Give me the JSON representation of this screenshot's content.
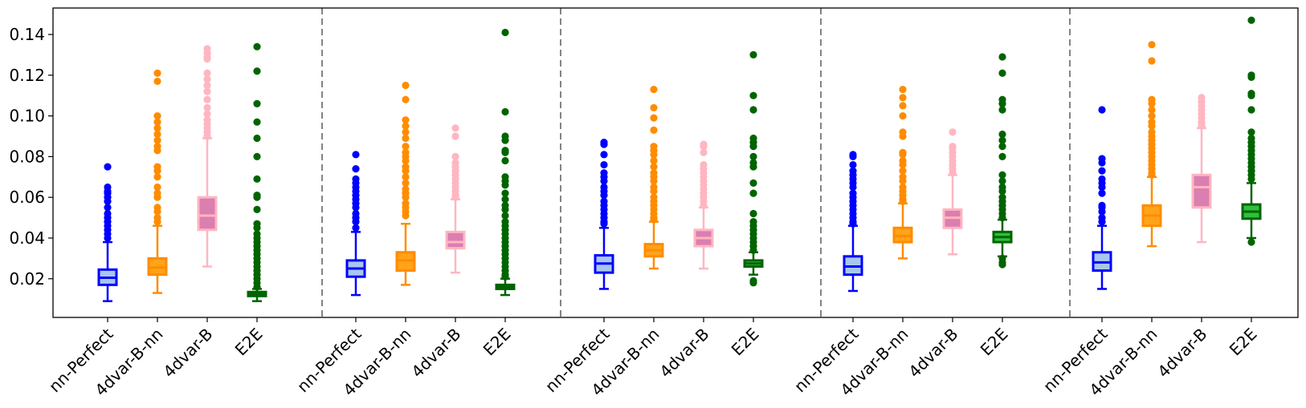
{
  "chart_data": {
    "type": "box",
    "title": "",
    "xlabel": "",
    "ylabel": "",
    "ylim": [
      0.001,
      0.153
    ],
    "yticks": [
      0.02,
      0.04,
      0.06,
      0.08,
      0.1,
      0.12,
      0.14
    ],
    "ytick_labels": [
      "0.02",
      "0.04",
      "0.06",
      "0.08",
      "0.10",
      "0.12",
      "0.14"
    ],
    "grid": false,
    "group_separators": "dashed gray vertical lines between groups",
    "methods": [
      {
        "name": "nn-Perfect",
        "color": "#0000ff",
        "fill": "#a9c6ef"
      },
      {
        "name": "4dvar-B-nn",
        "color": "#ff8c00",
        "fill": "#ffa31a"
      },
      {
        "name": "4dvar-B",
        "color": "#ffb6c1",
        "fill": "#db7eb0"
      },
      {
        "name": "E2E",
        "color": "#006400",
        "fill": "#2fbf3c"
      }
    ],
    "groups": [
      {
        "boxes": [
          {
            "method": "nn-Perfect",
            "whislo": 0.009,
            "q1": 0.017,
            "med": 0.0205,
            "q3": 0.0245,
            "whishi": 0.038,
            "fliers": [
              0.075,
              0.065,
              0.063,
              0.062,
              0.06,
              0.058,
              0.055,
              0.052,
              0.05,
              0.048,
              0.046,
              0.044,
              0.042,
              0.04
            ]
          },
          {
            "method": "4dvar-B-nn",
            "whislo": 0.013,
            "q1": 0.022,
            "med": 0.0255,
            "q3": 0.03,
            "whishi": 0.046,
            "fliers": [
              0.121,
              0.117,
              0.1,
              0.097,
              0.094,
              0.091,
              0.088,
              0.085,
              0.083,
              0.075,
              0.073,
              0.07,
              0.065,
              0.062,
              0.06,
              0.055,
              0.053,
              0.05,
              0.048
            ]
          },
          {
            "method": "4dvar-B",
            "whislo": 0.026,
            "q1": 0.044,
            "med": 0.051,
            "q3": 0.06,
            "whishi": 0.089,
            "fliers": [
              0.133,
              0.131,
              0.129,
              0.128,
              0.121,
              0.118,
              0.115,
              0.112,
              0.108,
              0.104,
              0.101,
              0.098,
              0.096,
              0.094,
              0.092,
              0.09
            ]
          },
          {
            "method": "E2E",
            "whislo": 0.009,
            "q1": 0.0115,
            "med": 0.0125,
            "q3": 0.0135,
            "whishi": 0.015,
            "fliers": [
              0.134,
              0.122,
              0.106,
              0.097,
              0.089,
              0.08,
              0.069,
              0.061,
              0.06,
              0.054,
              0.047,
              0.045,
              0.042,
              0.04,
              0.038,
              0.036,
              0.034,
              0.032,
              0.03,
              0.028,
              0.026,
              0.024,
              0.022,
              0.02,
              0.018,
              0.016
            ]
          }
        ]
      },
      {
        "boxes": [
          {
            "method": "nn-Perfect",
            "whislo": 0.012,
            "q1": 0.021,
            "med": 0.025,
            "q3": 0.029,
            "whishi": 0.043,
            "fliers": [
              0.081,
              0.074,
              0.069,
              0.067,
              0.065,
              0.063,
              0.061,
              0.059,
              0.057,
              0.055,
              0.052,
              0.05,
              0.048,
              0.045
            ]
          },
          {
            "method": "4dvar-B-nn",
            "whislo": 0.017,
            "q1": 0.024,
            "med": 0.029,
            "q3": 0.033,
            "whishi": 0.047,
            "fliers": [
              0.115,
              0.108,
              0.098,
              0.095,
              0.092,
              0.089,
              0.085,
              0.082,
              0.08,
              0.078,
              0.075,
              0.073,
              0.07,
              0.067,
              0.064,
              0.062,
              0.06,
              0.057,
              0.055,
              0.053,
              0.051
            ]
          },
          {
            "method": "4dvar-B",
            "whislo": 0.023,
            "q1": 0.035,
            "med": 0.038,
            "q3": 0.043,
            "whishi": 0.059,
            "fliers": [
              0.094,
              0.09,
              0.08,
              0.077,
              0.075,
              0.073,
              0.071,
              0.069,
              0.067,
              0.065,
              0.063,
              0.061,
              0.06
            ]
          },
          {
            "method": "E2E",
            "whislo": 0.012,
            "q1": 0.015,
            "med": 0.016,
            "q3": 0.017,
            "whishi": 0.02,
            "fliers": [
              0.141,
              0.102,
              0.09,
              0.088,
              0.083,
              0.082,
              0.078,
              0.07,
              0.068,
              0.066,
              0.062,
              0.059,
              0.056,
              0.054,
              0.051,
              0.048,
              0.046,
              0.044,
              0.042,
              0.04,
              0.038,
              0.036,
              0.034,
              0.032,
              0.03,
              0.028,
              0.026,
              0.024,
              0.022,
              0.021
            ]
          }
        ]
      },
      {
        "boxes": [
          {
            "method": "nn-Perfect",
            "whislo": 0.015,
            "q1": 0.023,
            "med": 0.0275,
            "q3": 0.0315,
            "whishi": 0.045,
            "fliers": [
              0.087,
              0.086,
              0.081,
              0.076,
              0.072,
              0.07,
              0.068,
              0.065,
              0.063,
              0.061,
              0.058,
              0.056,
              0.054,
              0.052,
              0.05,
              0.048,
              0.047
            ]
          },
          {
            "method": "4dvar-B-nn",
            "whislo": 0.025,
            "q1": 0.031,
            "med": 0.034,
            "q3": 0.037,
            "whishi": 0.048,
            "fliers": [
              0.113,
              0.104,
              0.099,
              0.093,
              0.085,
              0.083,
              0.081,
              0.078,
              0.075,
              0.072,
              0.07,
              0.068,
              0.065,
              0.063,
              0.06,
              0.058,
              0.056,
              0.054,
              0.052,
              0.05,
              0.049
            ]
          },
          {
            "method": "4dvar-B",
            "whislo": 0.025,
            "q1": 0.036,
            "med": 0.04,
            "q3": 0.044,
            "whishi": 0.055,
            "fliers": [
              0.086,
              0.085,
              0.082,
              0.076,
              0.074,
              0.072,
              0.07,
              0.068,
              0.066,
              0.064,
              0.062,
              0.06,
              0.058,
              0.056
            ]
          },
          {
            "method": "E2E",
            "whislo": 0.022,
            "q1": 0.026,
            "med": 0.0275,
            "q3": 0.029,
            "whishi": 0.033,
            "fliers": [
              0.13,
              0.11,
              0.103,
              0.089,
              0.087,
              0.085,
              0.08,
              0.077,
              0.075,
              0.067,
              0.062,
              0.052,
              0.048,
              0.046,
              0.044,
              0.042,
              0.04,
              0.038,
              0.036,
              0.034,
              0.019,
              0.018
            ]
          }
        ]
      },
      {
        "boxes": [
          {
            "method": "nn-Perfect",
            "whislo": 0.014,
            "q1": 0.022,
            "med": 0.026,
            "q3": 0.031,
            "whishi": 0.046,
            "fliers": [
              0.081,
              0.08,
              0.076,
              0.073,
              0.071,
              0.069,
              0.067,
              0.065,
              0.062,
              0.06,
              0.058,
              0.056,
              0.054,
              0.052,
              0.05,
              0.048,
              0.047
            ]
          },
          {
            "method": "4dvar-B-nn",
            "whislo": 0.03,
            "q1": 0.038,
            "med": 0.041,
            "q3": 0.045,
            "whishi": 0.057,
            "fliers": [
              0.113,
              0.109,
              0.105,
              0.1,
              0.092,
              0.09,
              0.082,
              0.081,
              0.078,
              0.076,
              0.073,
              0.07,
              0.068,
              0.065,
              0.063,
              0.061,
              0.059,
              0.058
            ]
          },
          {
            "method": "4dvar-B",
            "whislo": 0.032,
            "q1": 0.045,
            "med": 0.05,
            "q3": 0.054,
            "whishi": 0.071,
            "fliers": [
              0.092,
              0.085,
              0.084,
              0.082,
              0.08,
              0.078,
              0.076,
              0.074,
              0.072
            ]
          },
          {
            "method": "E2E",
            "whislo": 0.031,
            "q1": 0.038,
            "med": 0.0405,
            "q3": 0.043,
            "whishi": 0.049,
            "fliers": [
              0.129,
              0.121,
              0.108,
              0.106,
              0.103,
              0.091,
              0.088,
              0.085,
              0.08,
              0.071,
              0.068,
              0.065,
              0.063,
              0.06,
              0.058,
              0.056,
              0.054,
              0.052,
              0.05,
              0.03,
              0.028,
              0.027
            ]
          }
        ]
      },
      {
        "boxes": [
          {
            "method": "nn-Perfect",
            "whislo": 0.015,
            "q1": 0.024,
            "med": 0.028,
            "q3": 0.033,
            "whishi": 0.046,
            "fliers": [
              0.103,
              0.079,
              0.077,
              0.073,
              0.069,
              0.067,
              0.065,
              0.062,
              0.056,
              0.055,
              0.053,
              0.05,
              0.048
            ]
          },
          {
            "method": "4dvar-B-nn",
            "whislo": 0.036,
            "q1": 0.046,
            "med": 0.051,
            "q3": 0.056,
            "whishi": 0.07,
            "fliers": [
              0.135,
              0.127,
              0.108,
              0.106,
              0.103,
              0.1,
              0.097,
              0.095,
              0.092,
              0.09,
              0.088,
              0.086,
              0.084,
              0.082,
              0.08,
              0.078,
              0.076,
              0.074,
              0.072,
              0.071
            ]
          },
          {
            "method": "4dvar-B",
            "whislo": 0.038,
            "q1": 0.055,
            "med": 0.065,
            "q3": 0.071,
            "whishi": 0.094,
            "fliers": [
              0.109,
              0.107,
              0.105,
              0.103,
              0.101,
              0.099,
              0.097,
              0.096,
              0.095
            ]
          },
          {
            "method": "E2E",
            "whislo": 0.04,
            "q1": 0.0495,
            "med": 0.053,
            "q3": 0.0565,
            "whishi": 0.067,
            "fliers": [
              0.147,
              0.12,
              0.119,
              0.111,
              0.11,
              0.103,
              0.092,
              0.089,
              0.087,
              0.085,
              0.083,
              0.081,
              0.079,
              0.077,
              0.075,
              0.073,
              0.071,
              0.069,
              0.038
            ]
          }
        ]
      }
    ]
  }
}
